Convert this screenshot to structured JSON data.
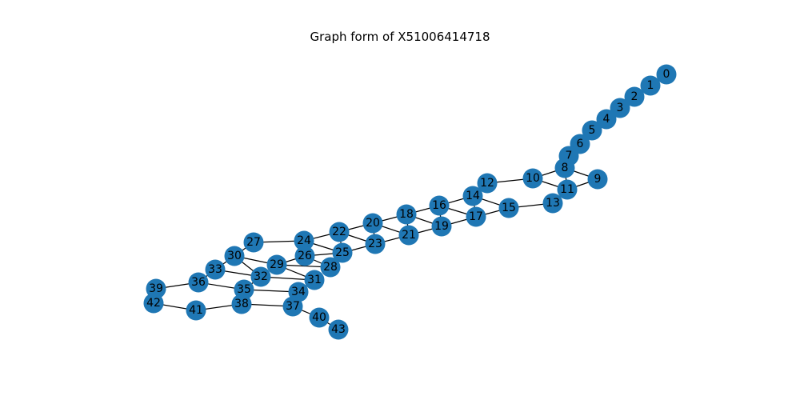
{
  "title": "Graph form of X51006414718",
  "colors": {
    "node": "#1f77b4",
    "edge": "#000000",
    "label": "#000000"
  },
  "nodes": [
    "0",
    "1",
    "2",
    "3",
    "4",
    "5",
    "6",
    "7",
    "8",
    "9",
    "10",
    "11",
    "12",
    "13",
    "14",
    "15",
    "16",
    "17",
    "18",
    "19",
    "20",
    "21",
    "22",
    "23",
    "24",
    "25",
    "26",
    "27",
    "28",
    "29",
    "30",
    "31",
    "32",
    "33",
    "34",
    "35",
    "36",
    "37",
    "38",
    "39",
    "40",
    "41",
    "42",
    "43"
  ],
  "edges": [
    [
      "0",
      "1"
    ],
    [
      "1",
      "2"
    ],
    [
      "2",
      "3"
    ],
    [
      "3",
      "4"
    ],
    [
      "4",
      "5"
    ],
    [
      "5",
      "6"
    ],
    [
      "6",
      "7"
    ],
    [
      "7",
      "8"
    ],
    [
      "8",
      "9"
    ],
    [
      "8",
      "10"
    ],
    [
      "8",
      "11"
    ],
    [
      "9",
      "11"
    ],
    [
      "10",
      "11"
    ],
    [
      "10",
      "12"
    ],
    [
      "11",
      "13"
    ],
    [
      "12",
      "14"
    ],
    [
      "13",
      "15"
    ],
    [
      "14",
      "15"
    ],
    [
      "14",
      "16"
    ],
    [
      "14",
      "17"
    ],
    [
      "15",
      "17"
    ],
    [
      "16",
      "17"
    ],
    [
      "16",
      "18"
    ],
    [
      "16",
      "19"
    ],
    [
      "17",
      "19"
    ],
    [
      "18",
      "19"
    ],
    [
      "18",
      "20"
    ],
    [
      "18",
      "21"
    ],
    [
      "19",
      "21"
    ],
    [
      "20",
      "21"
    ],
    [
      "20",
      "22"
    ],
    [
      "20",
      "23"
    ],
    [
      "21",
      "23"
    ],
    [
      "22",
      "23"
    ],
    [
      "22",
      "24"
    ],
    [
      "22",
      "25"
    ],
    [
      "23",
      "25"
    ],
    [
      "24",
      "25"
    ],
    [
      "24",
      "26"
    ],
    [
      "24",
      "27"
    ],
    [
      "25",
      "26"
    ],
    [
      "25",
      "28"
    ],
    [
      "26",
      "28"
    ],
    [
      "27",
      "30"
    ],
    [
      "26",
      "29"
    ],
    [
      "28",
      "29"
    ],
    [
      "29",
      "30"
    ],
    [
      "29",
      "31"
    ],
    [
      "30",
      "32"
    ],
    [
      "30",
      "33"
    ],
    [
      "31",
      "32"
    ],
    [
      "31",
      "34"
    ],
    [
      "32",
      "33"
    ],
    [
      "32",
      "35"
    ],
    [
      "33",
      "36"
    ],
    [
      "34",
      "35"
    ],
    [
      "34",
      "37"
    ],
    [
      "35",
      "36"
    ],
    [
      "35",
      "38"
    ],
    [
      "36",
      "39"
    ],
    [
      "37",
      "38"
    ],
    [
      "37",
      "40"
    ],
    [
      "38",
      "41"
    ],
    [
      "39",
      "42"
    ],
    [
      "40",
      "43"
    ],
    [
      "41",
      "42"
    ]
  ]
}
